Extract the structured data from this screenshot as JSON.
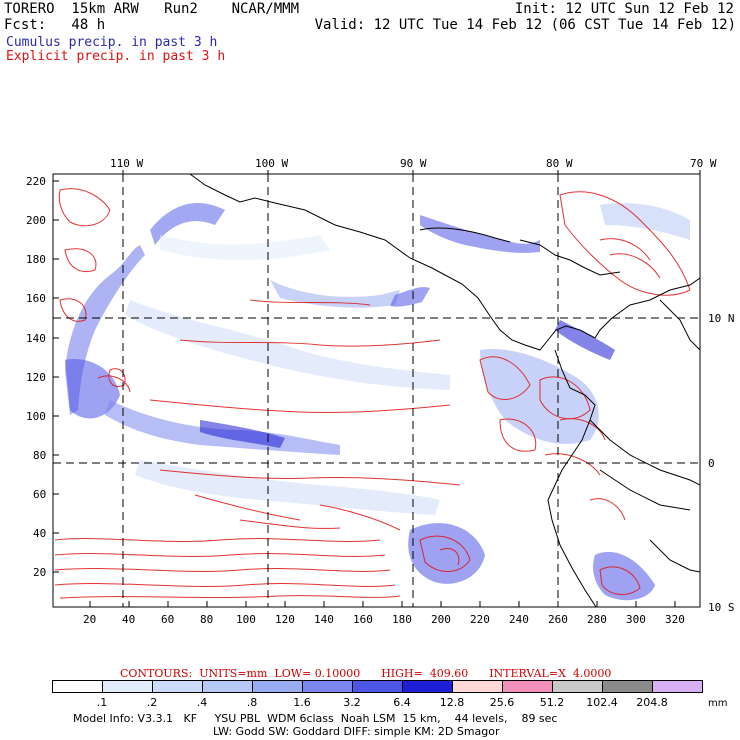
{
  "header": {
    "model_line": "TORERO  15km ARW   Run2    NCAR/MMM",
    "init": "Init: 12 UTC Sun 12 Feb 12",
    "fcst": "Fcst:   48 h",
    "valid": "Valid: 12 UTC Tue 14 Feb 12 (06 CST Tue 14 Feb 12)",
    "legend_cumulus": "Cumulus precip. in past 3 h",
    "legend_explicit": "Explicit precip. in past 3 h",
    "cumulus_color": "#2a2ab0",
    "explicit_color": "#e01010"
  },
  "map": {
    "top_lon_labels": [
      "110 W",
      "100 W",
      "90 W",
      "80 W",
      "70 W"
    ],
    "right_lat_labels": [
      "10 N",
      "0",
      "10 S"
    ],
    "left_ticks": [
      "220",
      "200",
      "180",
      "160",
      "140",
      "120",
      "100",
      "80",
      "60",
      "40",
      "20"
    ],
    "bottom_ticks": [
      "20",
      "40",
      "60",
      "80",
      "100",
      "120",
      "140",
      "160",
      "180",
      "200",
      "220",
      "240",
      "260",
      "280",
      "300",
      "320"
    ]
  },
  "contour_info": {
    "text": "CONTOURS:  UNITS=mm  LOW= 0.10000      HIGH=  409.60      INTERVAL=X  4.0000"
  },
  "colorbar": {
    "unit": "mm",
    "labels": [
      ".1",
      ".2",
      ".4",
      ".8",
      "1.6",
      "3.2",
      "6.4",
      "12.8",
      "25.6",
      "51.2",
      "102.4",
      "204.8"
    ],
    "colors": [
      "#ffffff",
      "#e2ecfb",
      "#cddcf8",
      "#b6c9f4",
      "#9aacf0",
      "#7c86ec",
      "#4e56e6",
      "#1f1fd6",
      "#ffd8d8",
      "#f08fba",
      "#c8c8c8",
      "#8a8a8a",
      "#d8b0f4"
    ]
  },
  "footer": {
    "line1": "Model Info: V3.3.1   KF     YSU PBL  WDM 6class  Noah LSM  15 km,    44 levels,    89 sec",
    "line2": "LW: Godd SW: Goddard DIFF: simple KM: 2D Smagor"
  }
}
